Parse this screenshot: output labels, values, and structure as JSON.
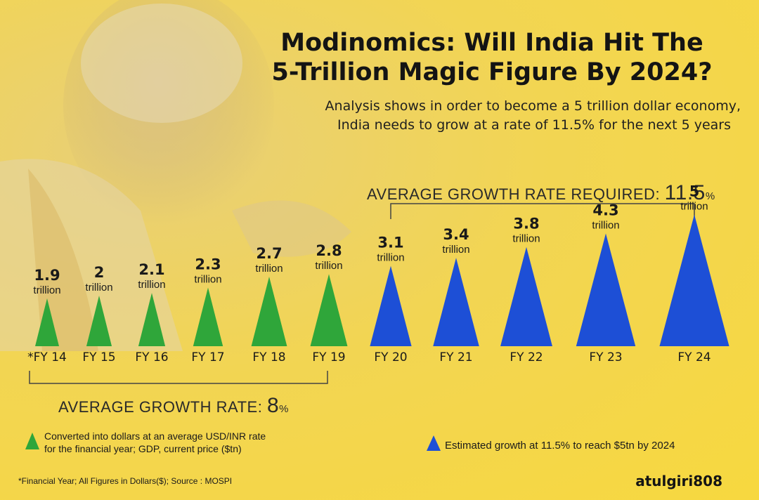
{
  "header": {
    "title_line1": "Modinomics: Will India Hit The",
    "title_line2": "5-Trillion Magic Figure By 2024?",
    "subtitle_line1": "Analysis shows in order to become a 5 trillion dollar economy,",
    "subtitle_line2": "India needs to grow at a rate of 11.5% for the next 5 years"
  },
  "annotations": {
    "required_label": "AVERAGE GROWTH RATE REQUIRED: ",
    "required_value": "11.5",
    "required_pct": "%",
    "average_label": "AVERAGE GROWTH RATE: ",
    "average_value": "8",
    "average_pct": "%"
  },
  "legend": {
    "green_text_line1": "Converted into dollars at an average USD/INR rate",
    "green_text_line2": "for the financial year; GDP, current price ($tn)",
    "blue_text": "Estimated growth at 11.5% to reach $5tn by 2024"
  },
  "footnote": "*Financial Year; All Figures in Dollars($); Source :  MOSPI",
  "watermark": "atulgiri808",
  "colors": {
    "background": "#f6d84a",
    "actual": "#2fa63a",
    "estimated": "#1d4fd6"
  },
  "chart_data": {
    "type": "bar",
    "mark": "triangle",
    "title": "Modinomics: Will India Hit The 5-Trillion Magic Figure By 2024?",
    "unit": "trillion",
    "categories": [
      "*FY 14",
      "FY 15",
      "FY 16",
      "FY 17",
      "FY 18",
      "FY 19",
      "FY 20",
      "FY 21",
      "FY 22",
      "FY 23",
      "FY 24"
    ],
    "values": [
      1.9,
      2,
      2.1,
      2.3,
      2.7,
      2.8,
      3.1,
      3.4,
      3.8,
      4.3,
      5
    ],
    "value_labels": [
      "1.9",
      "2",
      "2.1",
      "2.3",
      "2.7",
      "2.8",
      "3.1",
      "3.4",
      "3.8",
      "4.3",
      "5"
    ],
    "status": [
      "actual",
      "actual",
      "actual",
      "actual",
      "actual",
      "actual",
      "estimated",
      "estimated",
      "estimated",
      "estimated",
      "estimated"
    ],
    "legend": [
      {
        "status": "actual",
        "color": "#2fa63a"
      },
      {
        "status": "estimated",
        "color": "#1d4fd6"
      }
    ],
    "grid": false
  }
}
